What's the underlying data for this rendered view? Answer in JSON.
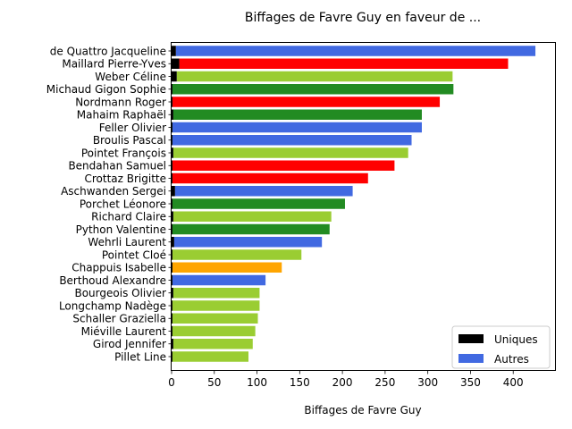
{
  "chart_data": {
    "type": "bar",
    "orientation": "horizontal",
    "title": "Biffages de Favre Guy en faveur de ...",
    "xlabel": "Biffages de Favre Guy",
    "ylabel": "",
    "xlim": [
      0,
      450
    ],
    "xticks": [
      0,
      50,
      100,
      150,
      200,
      250,
      300,
      350,
      400
    ],
    "grid": false,
    "legend_position": "lower-right",
    "legend": [
      {
        "label": "Uniques",
        "color": "#000000"
      },
      {
        "label": "Autres",
        "color": "#4169e1"
      }
    ],
    "colors": {
      "blue": "#4169e1",
      "red": "#ff0000",
      "yellowgreen": "#9acd32",
      "forestgreen": "#228b22",
      "orange": "#ffa500",
      "unique": "#000000"
    },
    "categories": [
      "de Quattro Jacqueline",
      "Maillard Pierre-Yves",
      "Weber Céline",
      "Michaud Gigon Sophie",
      "Nordmann Roger",
      "Mahaim Raphaël",
      "Feller Olivier",
      "Broulis Pascal",
      "Pointet François",
      "Bendahan Samuel",
      "Crottaz Brigitte",
      "Aschwanden Sergei",
      "Porchet Léonore",
      "Richard Claire",
      "Python Valentine",
      "Wehrli Laurent",
      "Pointet Cloé",
      "Chappuis Isabelle",
      "Berthoud Alexandre",
      "Bourgeois Olivier",
      "Longchamp Nadège",
      "Schaller Graziella",
      "Miéville Laurent",
      "Girod Jennifer",
      "Pillet Line"
    ],
    "series": [
      {
        "name": "Uniques",
        "values": [
          5,
          9,
          6,
          1,
          1,
          2,
          1,
          1,
          2,
          1,
          1,
          4,
          1,
          2,
          1,
          3,
          1,
          1,
          1,
          2,
          1,
          1,
          1,
          2,
          1
        ]
      },
      {
        "name": "Autres",
        "values": [
          421,
          385,
          323,
          329,
          313,
          291,
          292,
          280,
          275,
          260,
          229,
          208,
          202,
          185,
          184,
          173,
          151,
          128,
          109,
          101,
          102,
          100,
          97,
          93,
          89
        ]
      }
    ],
    "bar_colors": [
      "blue",
      "red",
      "yellowgreen",
      "forestgreen",
      "red",
      "forestgreen",
      "blue",
      "blue",
      "yellowgreen",
      "red",
      "red",
      "blue",
      "forestgreen",
      "yellowgreen",
      "forestgreen",
      "blue",
      "yellowgreen",
      "orange",
      "blue",
      "yellowgreen",
      "yellowgreen",
      "yellowgreen",
      "yellowgreen",
      "yellowgreen",
      "yellowgreen"
    ]
  }
}
